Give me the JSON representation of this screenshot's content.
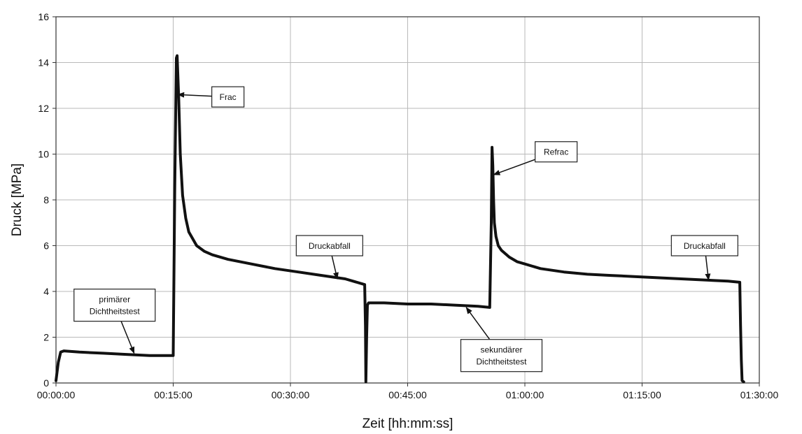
{
  "chart_data": {
    "type": "line",
    "xlabel": "Zeit [hh:mm:ss]",
    "ylabel": "Druck [MPa]",
    "xlim": [
      0,
      90
    ],
    "ylim": [
      0,
      16
    ],
    "x_ticks": [
      0,
      15,
      30,
      45,
      60,
      75,
      90
    ],
    "x_tick_labels": [
      "00:00:00",
      "00:15:00",
      "00:30:00",
      "00:45:00",
      "01:00:00",
      "01:15:00",
      "01:30:00"
    ],
    "y_ticks": [
      0,
      2,
      4,
      6,
      8,
      10,
      12,
      14,
      16
    ],
    "y_tick_labels": [
      "0",
      "2",
      "4",
      "6",
      "8",
      "10",
      "12",
      "14",
      "16"
    ],
    "grid": true,
    "series": [
      {
        "x": [
          0.0,
          0.3,
          0.6,
          1.0,
          3.0,
          6.0,
          9.0,
          12.0,
          15.0,
          15.2,
          15.4,
          15.5,
          15.7,
          15.9,
          16.2,
          16.6,
          17.0,
          18.0,
          19.0,
          20.0,
          22.0,
          25.0,
          28.0,
          31.0,
          34.0,
          37.0,
          39.5,
          39.6,
          39.65,
          39.75,
          39.85,
          40.0,
          42.0,
          45.0,
          48.0,
          51.0,
          54.0,
          55.5,
          55.7,
          55.8,
          55.9,
          56.0,
          56.1,
          56.3,
          56.6,
          57.0,
          57.5,
          58.0,
          59.0,
          60.0,
          62.0,
          65.0,
          68.0,
          71.0,
          74.0,
          77.0,
          80.0,
          83.0,
          86.0,
          87.5,
          87.6,
          87.7,
          87.8,
          88.0
        ],
        "y": [
          0.1,
          0.9,
          1.35,
          1.4,
          1.35,
          1.3,
          1.25,
          1.2,
          1.2,
          8.5,
          14.2,
          14.3,
          12.5,
          10.0,
          8.2,
          7.2,
          6.6,
          6.0,
          5.75,
          5.6,
          5.4,
          5.2,
          5.0,
          4.85,
          4.7,
          4.55,
          4.3,
          2.5,
          0.05,
          2.0,
          3.4,
          3.5,
          3.5,
          3.45,
          3.45,
          3.4,
          3.35,
          3.3,
          7.0,
          10.3,
          9.5,
          8.0,
          7.0,
          6.4,
          6.0,
          5.8,
          5.65,
          5.5,
          5.3,
          5.2,
          5.0,
          4.85,
          4.75,
          4.7,
          4.65,
          4.6,
          4.55,
          4.5,
          4.45,
          4.4,
          2.5,
          1.0,
          0.1,
          0.05
        ]
      }
    ],
    "annotations": [
      {
        "lines": [
          "primärer",
          "Dichtheitstest"
        ],
        "box_x": 7.5,
        "box_y": 3.4,
        "arrow_x": 10.0,
        "arrow_y": 1.3
      },
      {
        "lines": [
          "Frac"
        ],
        "box_x": 22.0,
        "box_y": 12.5,
        "arrow_x": 15.6,
        "arrow_y": 12.6
      },
      {
        "lines": [
          "Druckabfall"
        ],
        "box_x": 35.0,
        "box_y": 6.0,
        "arrow_x": 36.0,
        "arrow_y": 4.55
      },
      {
        "lines": [
          "sekundärer",
          "Dichtheitstest"
        ],
        "box_x": 57.0,
        "box_y": 1.2,
        "arrow_x": 52.5,
        "arrow_y": 3.3
      },
      {
        "lines": [
          "Refrac"
        ],
        "box_x": 64.0,
        "box_y": 10.1,
        "arrow_x": 56.0,
        "arrow_y": 9.1
      },
      {
        "lines": [
          "Druckabfall"
        ],
        "box_x": 83.0,
        "box_y": 6.0,
        "arrow_x": 83.5,
        "arrow_y": 4.5
      }
    ]
  }
}
